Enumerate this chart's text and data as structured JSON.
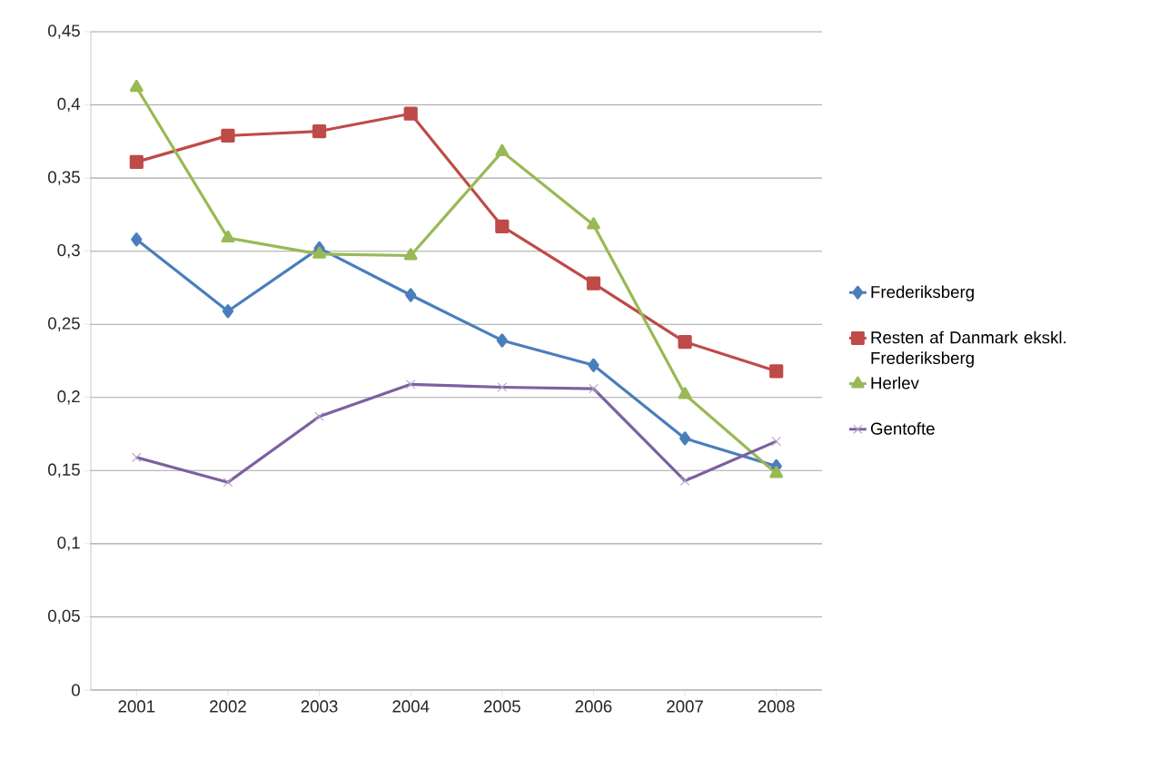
{
  "chart_data": {
    "type": "line",
    "categories": [
      "2001",
      "2002",
      "2003",
      "2004",
      "2005",
      "2006",
      "2007",
      "2008"
    ],
    "ylim": [
      0,
      0.45
    ],
    "yticks": [
      {
        "value": 0,
        "label": "0"
      },
      {
        "value": 0.05,
        "label": "0,05"
      },
      {
        "value": 0.1,
        "label": "0,1"
      },
      {
        "value": 0.15,
        "label": "0,15"
      },
      {
        "value": 0.2,
        "label": "0,2"
      },
      {
        "value": 0.25,
        "label": "0,25"
      },
      {
        "value": 0.3,
        "label": "0,3"
      },
      {
        "value": 0.35,
        "label": "0,35"
      },
      {
        "value": 0.4,
        "label": "0,4"
      },
      {
        "value": 0.45,
        "label": "0,45"
      }
    ],
    "grid": "y",
    "legend": "right",
    "line_style": "solid",
    "series": [
      {
        "name": "Frederiksberg",
        "color": "#4a7ebb",
        "marker": "diamond",
        "values": [
          0.308,
          0.259,
          0.302,
          0.27,
          0.239,
          0.222,
          0.172,
          0.153
        ]
      },
      {
        "name": "Resten af Danmark ekskl. Frederiksberg",
        "color": "#be4b48",
        "marker": "square",
        "values": [
          0.361,
          0.379,
          0.382,
          0.394,
          0.317,
          0.278,
          0.238,
          0.218
        ]
      },
      {
        "name": "Herlev",
        "color": "#98b954",
        "marker": "triangle",
        "values": [
          0.412,
          0.309,
          0.298,
          0.297,
          0.368,
          0.318,
          0.202,
          0.148
        ]
      },
      {
        "name": "Gentofte",
        "color": "#7d60a0",
        "marker": "cross",
        "values": [
          0.159,
          0.142,
          0.187,
          0.209,
          0.207,
          0.206,
          0.143,
          0.17
        ]
      }
    ]
  }
}
